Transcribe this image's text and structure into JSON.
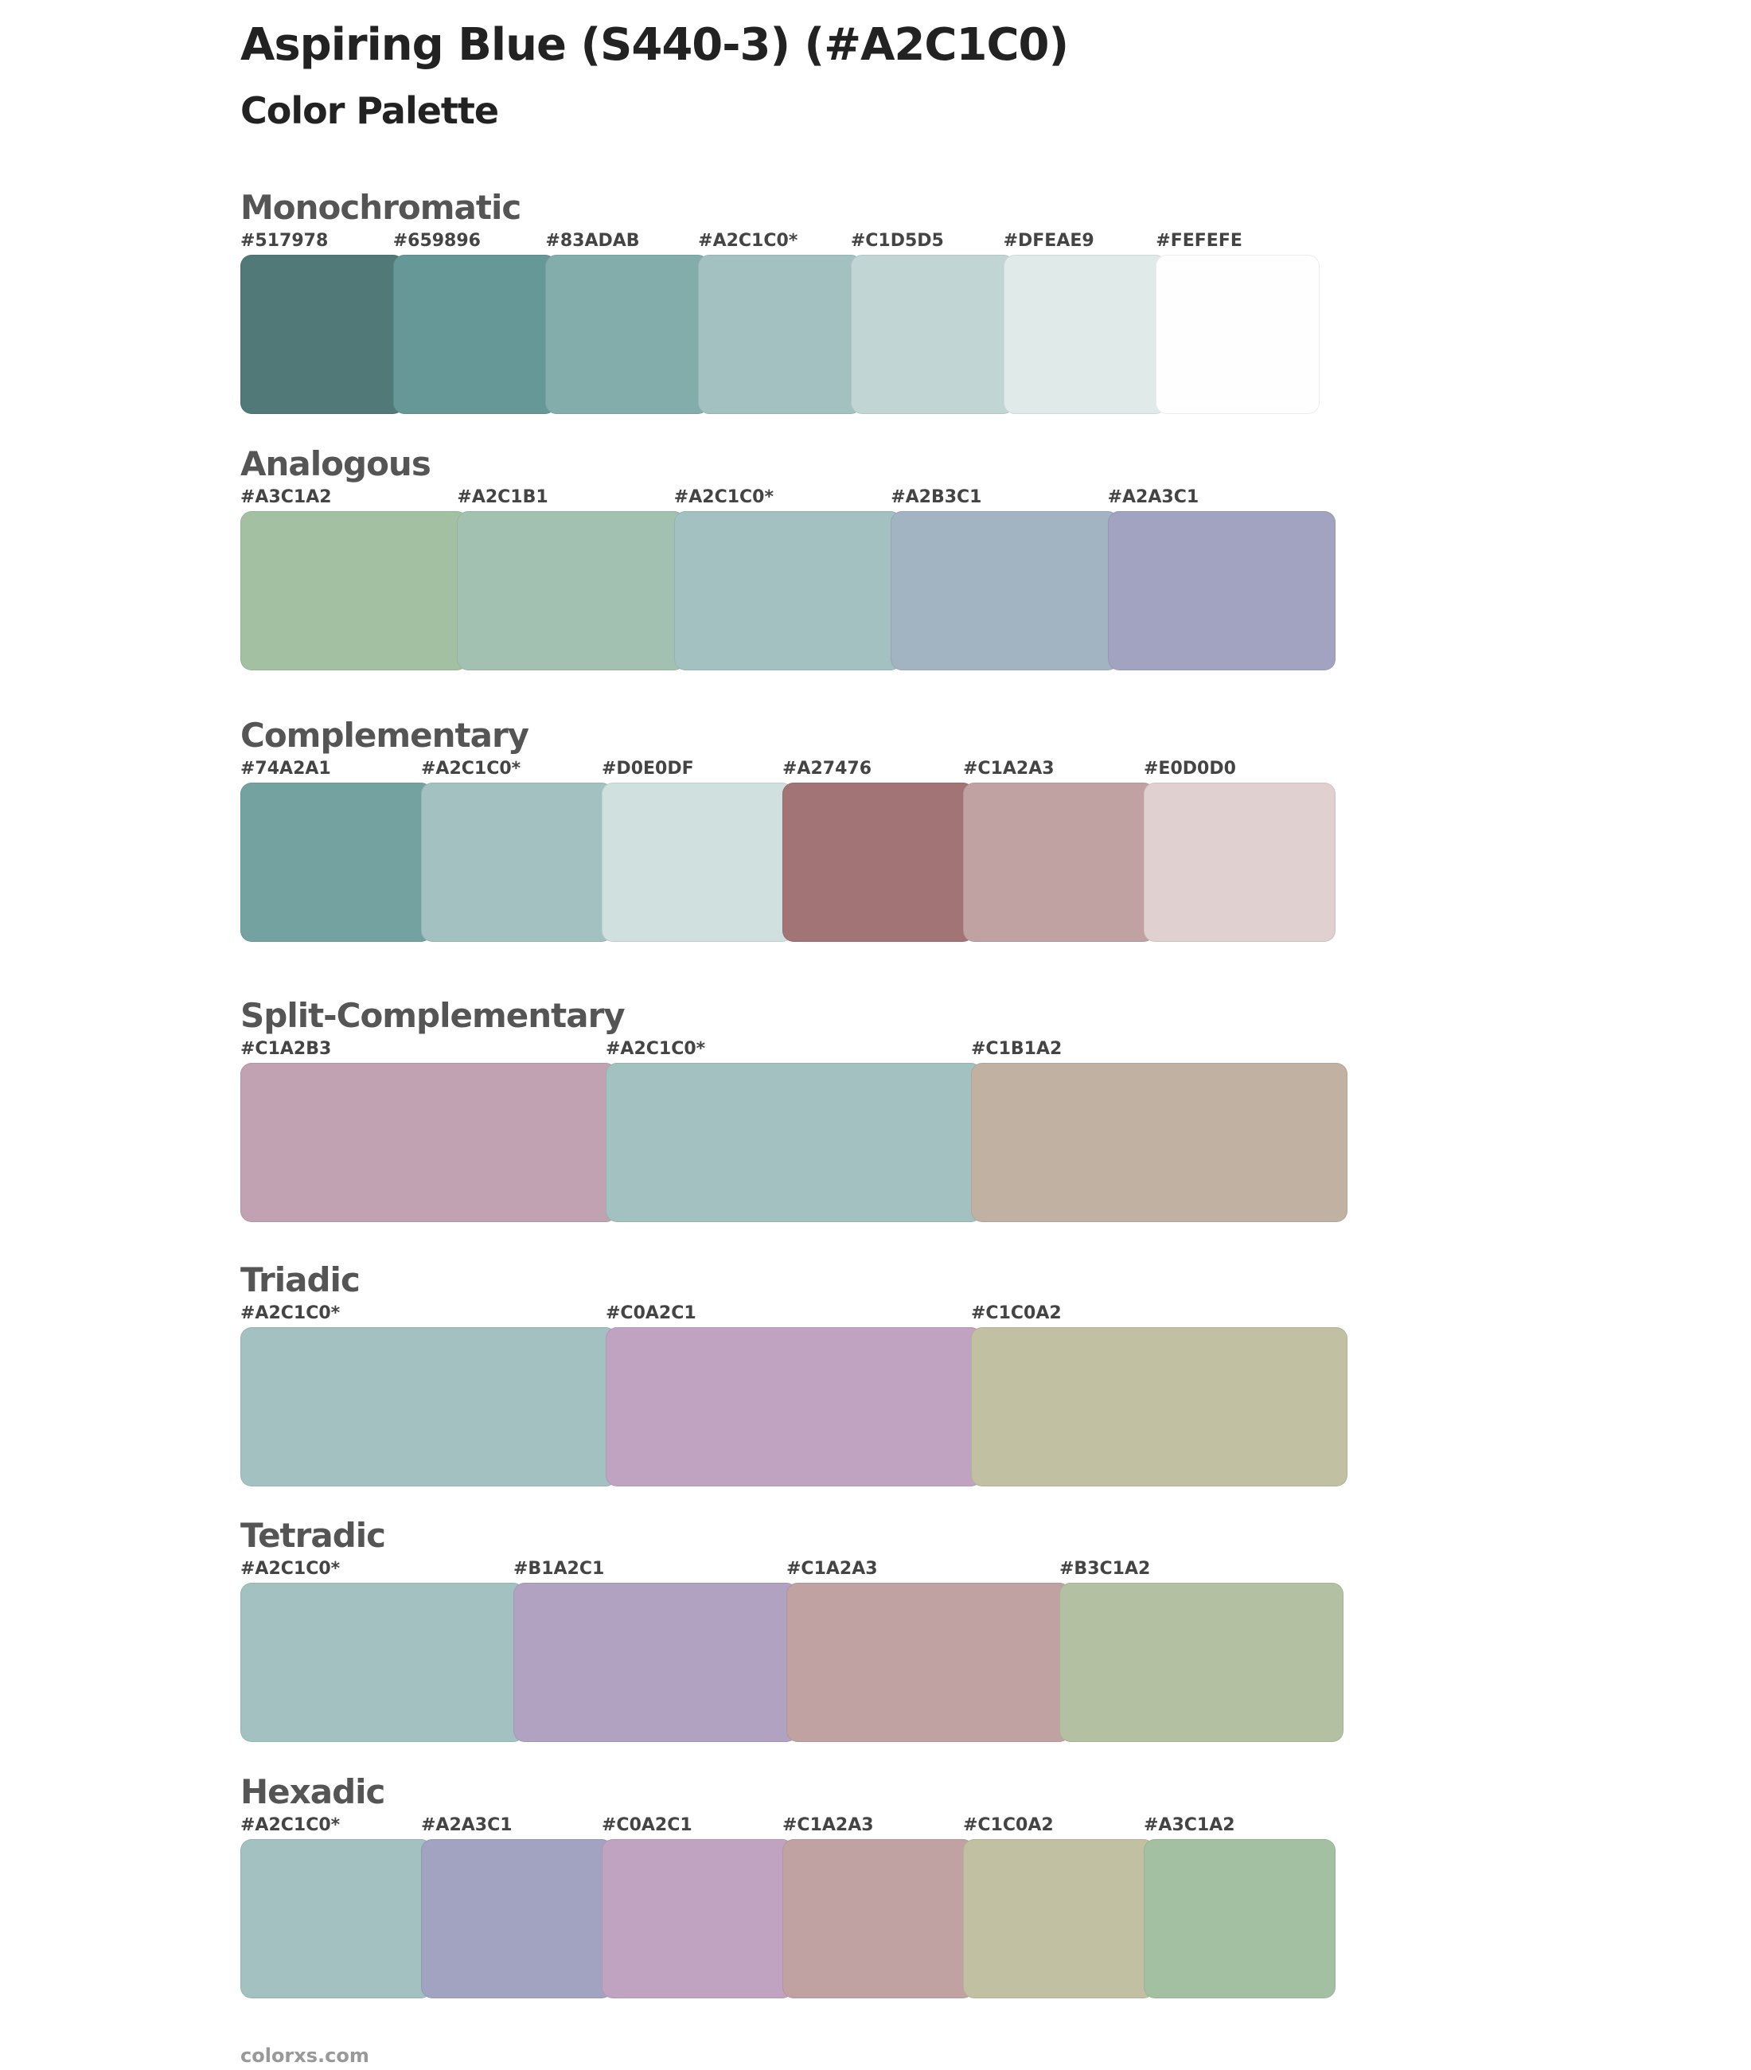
{
  "header": {
    "title": "Aspiring Blue (S440-3) (#A2C1C0)",
    "subtitle": "Color Palette"
  },
  "sections": [
    {
      "title": "Monochromatic",
      "swatches": [
        "#517978",
        "#659896",
        "#83ADAB",
        "#A2C1C0*",
        "#C1D5D5",
        "#DFEAE9",
        "#FEFEFE"
      ]
    },
    {
      "title": "Analogous",
      "swatches": [
        "#A3C1A2",
        "#A2C1B1",
        "#A2C1C0*",
        "#A2B3C1",
        "#A2A3C1"
      ]
    },
    {
      "title": "Complementary",
      "swatches": [
        "#74A2A1",
        "#A2C1C0*",
        "#D0E0DF",
        "#A27476",
        "#C1A2A3",
        "#E0D0D0"
      ]
    },
    {
      "title": "Split-Complementary",
      "swatches": [
        "#C1A2B3",
        "#A2C1C0*",
        "#C1B1A2"
      ]
    },
    {
      "title": "Triadic",
      "swatches": [
        "#A2C1C0*",
        "#C0A2C1",
        "#C1C0A2"
      ]
    },
    {
      "title": "Tetradic",
      "swatches": [
        "#A2C1C0*",
        "#B1A2C1",
        "#C1A2A3",
        "#B3C1A2"
      ]
    },
    {
      "title": "Hexadic",
      "swatches": [
        "#A2C1C0*",
        "#A2A3C1",
        "#C0A2C1",
        "#C1A2A3",
        "#C1C0A2",
        "#A3C1A2"
      ]
    }
  ],
  "footer": {
    "text": "colorxs.com"
  }
}
